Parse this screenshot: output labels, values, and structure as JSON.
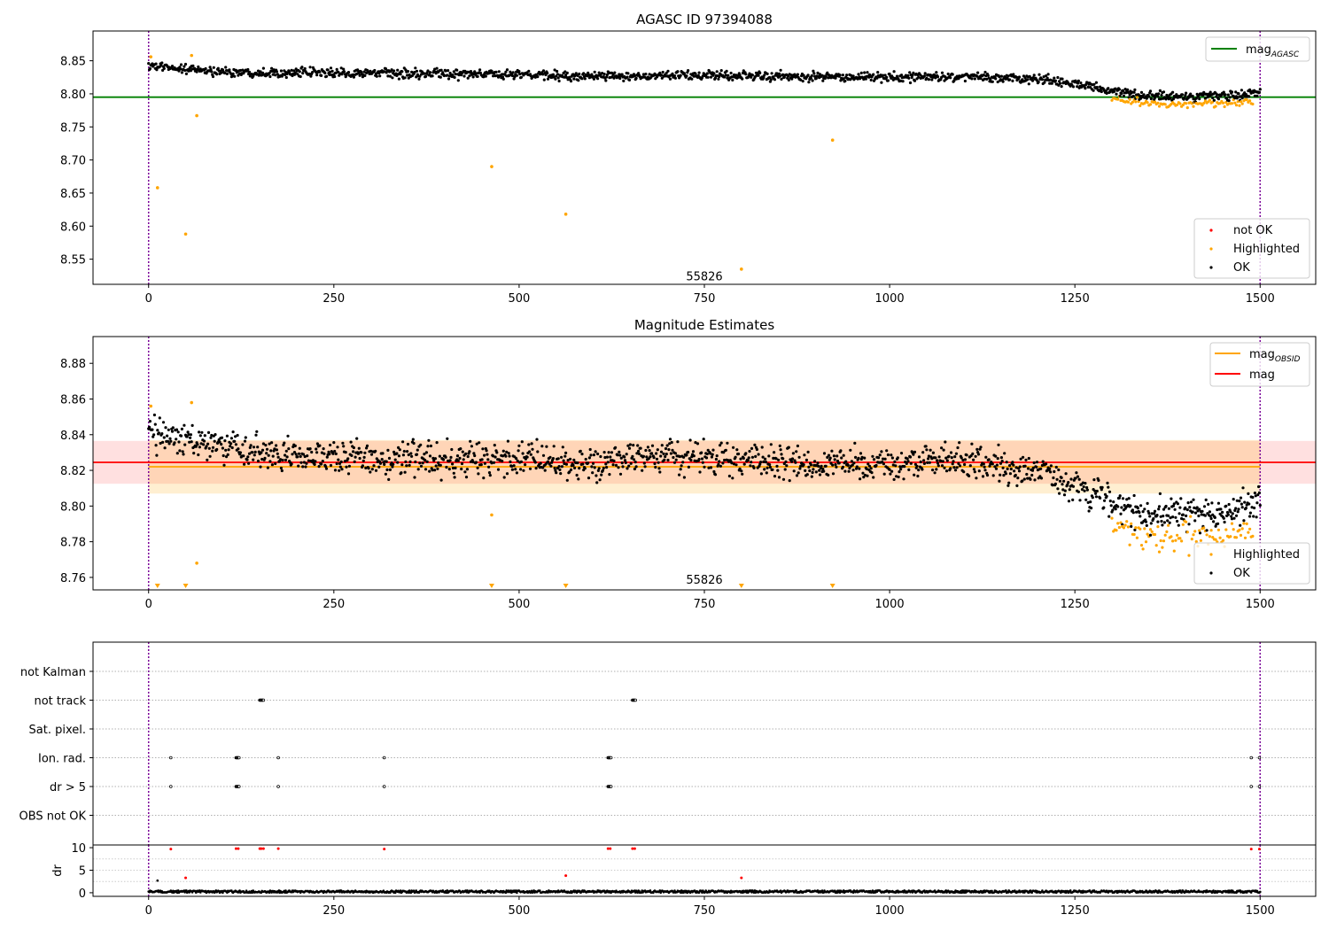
{
  "figure": {
    "background": "#ffffff"
  },
  "chart_data": [
    {
      "type": "scatter",
      "title": "AGASC ID 97394088",
      "xlim": [
        -75,
        1575
      ],
      "ylim": [
        8.512,
        8.895
      ],
      "xticks": [
        "0",
        "250",
        "500",
        "750",
        "1000",
        "1250",
        "1500"
      ],
      "yticks": [
        "8.55",
        "8.60",
        "8.65",
        "8.70",
        "8.75",
        "8.80",
        "8.85"
      ],
      "annotation": {
        "text": "55826",
        "x": 750,
        "y": 8.518
      },
      "vlines": [
        0,
        1500
      ],
      "hline": {
        "label": "mag",
        "subscript": "AGASC",
        "value": 8.795,
        "color": "#008000",
        "x_range": [
          -75,
          1575
        ]
      },
      "trend": {
        "x": [
          0,
          100,
          200,
          300,
          400,
          500,
          600,
          700,
          800,
          900,
          1000,
          1100,
          1200,
          1250,
          1300,
          1350,
          1400,
          1450,
          1500
        ],
        "y": [
          8.842,
          8.833,
          8.832,
          8.831,
          8.83,
          8.829,
          8.826,
          8.828,
          8.827,
          8.826,
          8.825,
          8.826,
          8.822,
          8.815,
          8.805,
          8.797,
          8.795,
          8.797,
          8.802
        ],
        "jitter": 0.007
      },
      "highlight_region": {
        "x_range": [
          1300,
          1490
        ],
        "offset": -0.012
      },
      "outliers": [
        {
          "x": 3,
          "y": 8.856
        },
        {
          "x": 12,
          "y": 8.658
        },
        {
          "x": 50,
          "y": 8.588
        },
        {
          "x": 58,
          "y": 8.858
        },
        {
          "x": 65,
          "y": 8.767
        },
        {
          "x": 463,
          "y": 8.69
        },
        {
          "x": 563,
          "y": 8.618
        },
        {
          "x": 800,
          "y": 8.535
        },
        {
          "x": 923,
          "y": 8.73
        }
      ],
      "legend_lines": [
        {
          "label": "mag",
          "subscript": "AGASC",
          "color": "#008000"
        }
      ],
      "legend_points": [
        {
          "label": "not OK",
          "color": "#ff0000"
        },
        {
          "label": "Highlighted",
          "color": "#ffa500"
        },
        {
          "label": "OK",
          "color": "#000000"
        }
      ]
    },
    {
      "type": "scatter",
      "title": "Magnitude Estimates",
      "xlim": [
        -75,
        1575
      ],
      "ylim": [
        8.753,
        8.895
      ],
      "xticks": [
        "0",
        "250",
        "500",
        "750",
        "1000",
        "1250",
        "1500"
      ],
      "yticks": [
        "8.76",
        "8.78",
        "8.80",
        "8.82",
        "8.84",
        "8.86",
        "8.88"
      ],
      "annotation": {
        "text": "55826",
        "x": 750,
        "y": 8.7565
      },
      "vlines": [
        0,
        1500
      ],
      "trend": {
        "x": [
          0,
          100,
          200,
          300,
          400,
          500,
          600,
          700,
          800,
          900,
          1000,
          1100,
          1200,
          1250,
          1300,
          1350,
          1400,
          1450,
          1500
        ],
        "y": [
          8.842,
          8.833,
          8.828,
          8.827,
          8.826,
          8.827,
          8.823,
          8.829,
          8.826,
          8.823,
          8.824,
          8.826,
          8.82,
          8.81,
          8.803,
          8.793,
          8.797,
          8.795,
          8.801
        ],
        "jitter": 0.009
      },
      "highlight_region": {
        "x_range": [
          1300,
          1490
        ],
        "offset": -0.012
      },
      "outliers": [
        {
          "x": 3,
          "y": 8.856
        },
        {
          "x": 58,
          "y": 8.858
        },
        {
          "x": 65,
          "y": 8.768
        },
        {
          "x": 463,
          "y": 8.795
        }
      ],
      "clipped_markers": [
        12,
        50,
        463,
        563,
        800,
        923
      ],
      "mag_obsid": {
        "label": "mag",
        "subscript": "OBSID",
        "value": 8.822,
        "band": [
          8.807,
          8.837
        ],
        "x_range": [
          0,
          1500
        ],
        "color": "#ffa500"
      },
      "mag": {
        "label": "mag",
        "value": 8.8245,
        "band": [
          8.8125,
          8.8365
        ],
        "x_range": [
          -75,
          1575
        ],
        "color": "#ff0000"
      },
      "legend_lines": [
        {
          "label": "mag",
          "subscript": "OBSID",
          "color": "#ffa500"
        },
        {
          "label": "mag",
          "color": "#ff0000"
        }
      ],
      "legend_points": [
        {
          "label": "Highlighted",
          "color": "#ffa500"
        },
        {
          "label": "OK",
          "color": "#000000"
        }
      ]
    },
    {
      "type": "scatter",
      "xlim": [
        -75,
        1575
      ],
      "xticks": [
        "0",
        "250",
        "500",
        "750",
        "1000",
        "1250",
        "1500"
      ],
      "vlines": [
        0,
        1500
      ],
      "categories": [
        "not Kalman",
        "not track",
        "Sat. pixel.",
        "Ion. rad.",
        "dr > 5",
        "OBS not OK"
      ],
      "flags": {
        "not track": [
          150,
          151,
          152,
          153,
          154,
          155,
          653,
          654,
          655,
          656,
          657
        ],
        "Ion. rad.": [
          30,
          118,
          119,
          120,
          121,
          122,
          175,
          318,
          620,
          621,
          622,
          623,
          624,
          1488,
          1499
        ],
        "dr > 5": [
          30,
          118,
          119,
          120,
          121,
          122,
          175,
          318,
          620,
          621,
          622,
          623,
          624,
          1488,
          1499
        ]
      }
    },
    {
      "type": "scatter",
      "ylabel": "dr",
      "xlim": [
        -75,
        1575
      ],
      "ylim": [
        -0.8,
        10.6
      ],
      "xticks": [
        "0",
        "250",
        "500",
        "750",
        "1000",
        "1250",
        "1500"
      ],
      "yticks": [
        "0",
        "5",
        "10"
      ],
      "vlines": [
        0,
        1500
      ],
      "baseline": {
        "y": 0.25,
        "jitter": 0.25
      },
      "red_points": [
        {
          "x": 30,
          "y": 9.7
        },
        {
          "x": 50,
          "y": 3.3
        },
        {
          "x": 118,
          "y": 9.8
        },
        {
          "x": 121,
          "y": 9.8
        },
        {
          "x": 150,
          "y": 9.8
        },
        {
          "x": 152,
          "y": 9.8
        },
        {
          "x": 155,
          "y": 9.8
        },
        {
          "x": 175,
          "y": 9.8
        },
        {
          "x": 318,
          "y": 9.7
        },
        {
          "x": 563,
          "y": 3.8
        },
        {
          "x": 620,
          "y": 9.8
        },
        {
          "x": 623,
          "y": 9.8
        },
        {
          "x": 653,
          "y": 9.8
        },
        {
          "x": 656,
          "y": 9.8
        },
        {
          "x": 800,
          "y": 3.3
        },
        {
          "x": 1488,
          "y": 9.7
        },
        {
          "x": 1499,
          "y": 9.7
        }
      ],
      "black_points": [
        {
          "x": 12,
          "y": 2.7
        }
      ]
    }
  ]
}
